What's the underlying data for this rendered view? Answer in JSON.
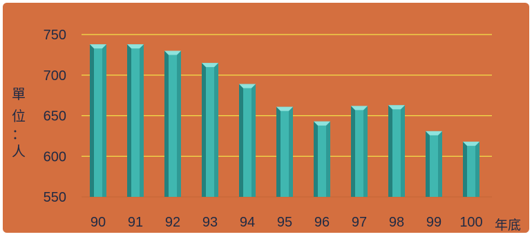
{
  "chart_data": {
    "type": "bar",
    "categories": [
      "90",
      "91",
      "92",
      "93",
      "94",
      "95",
      "96",
      "97",
      "98",
      "99",
      "100"
    ],
    "values": [
      738,
      738,
      730,
      715,
      689,
      661,
      643,
      662,
      663,
      631,
      618
    ],
    "title": "",
    "xlabel": "年底",
    "ylabel_chars": [
      "單",
      "位",
      "：",
      "人"
    ],
    "ylim": [
      550,
      750
    ],
    "yticks": [
      750,
      700,
      650,
      600,
      550
    ],
    "grid": true,
    "legend": "none"
  },
  "colors": {
    "background": "#d46f3f",
    "gridline": "#f2e34a",
    "bar_face": "#40b7b0",
    "bar_top": "#8fe3dc",
    "bar_shade": "#24817d",
    "text": "#1f2a44"
  }
}
